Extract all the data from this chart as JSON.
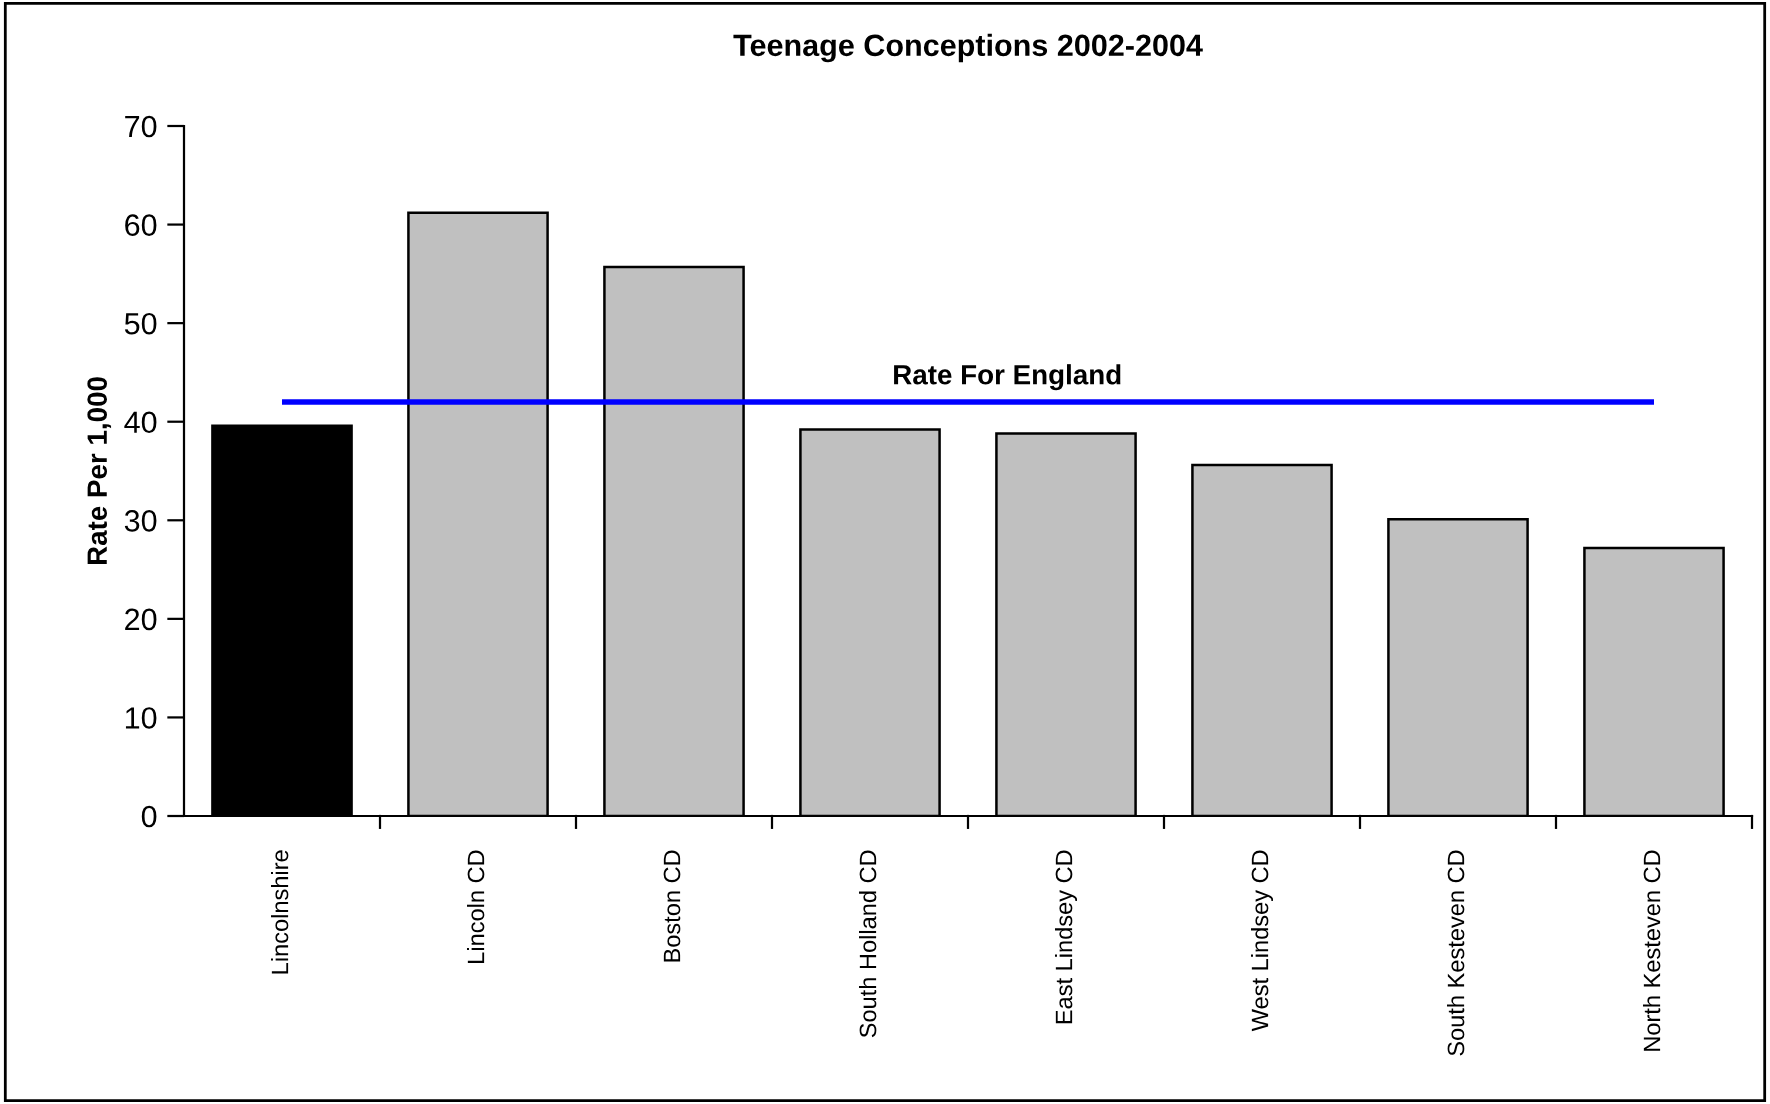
{
  "chart_data": {
    "type": "bar",
    "title": "Teenage Conceptions 2002-2004",
    "ylabel": "Rate Per 1,000",
    "categories": [
      "Lincolnshire",
      "Lincoln CD",
      "Boston CD",
      "South Holland CD",
      "East Lindsey CD",
      "West Lindsey CD",
      "South Kesteven CD",
      "North Kesteven CD"
    ],
    "values": [
      39.6,
      61.2,
      55.7,
      39.2,
      38.8,
      35.6,
      30.1,
      27.2
    ],
    "colors": [
      "#000000",
      "#c0c0c0",
      "#c0c0c0",
      "#c0c0c0",
      "#c0c0c0",
      "#c0c0c0",
      "#c0c0c0",
      "#c0c0c0"
    ],
    "ylim": [
      0,
      70
    ],
    "yticks": [
      0,
      10,
      20,
      30,
      40,
      50,
      60,
      70
    ],
    "ref_lines": [
      {
        "axis": "y",
        "value": 42.0,
        "label": "Rate For England",
        "color": "#0000ff",
        "line_style": "solid"
      }
    ],
    "grid": false,
    "legend": false
  }
}
